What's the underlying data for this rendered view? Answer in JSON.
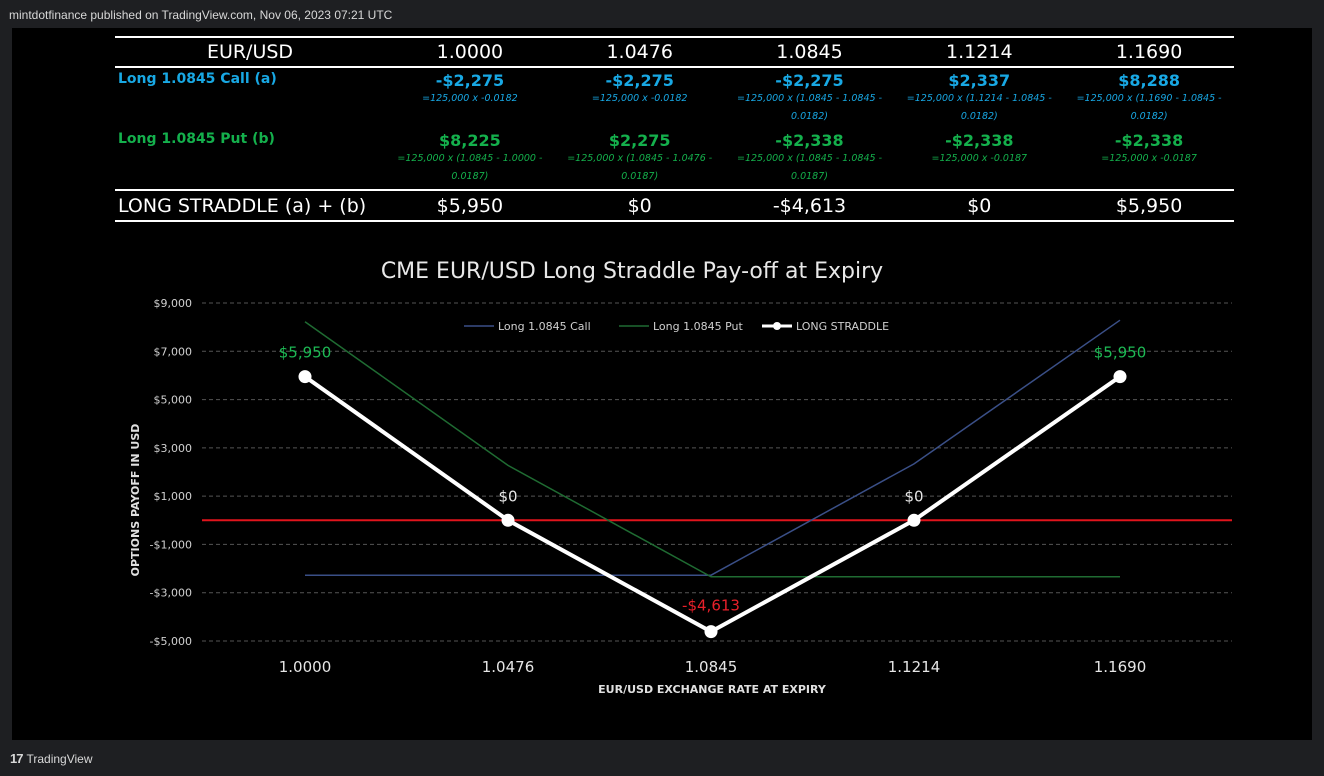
{
  "published": "mintdotfinance published on TradingView.com, Nov 06, 2023 07:21 UTC",
  "footer": {
    "brand": "TradingView",
    "logo": "tradingview-logo-icon"
  },
  "table": {
    "header": {
      "label": "EUR/USD",
      "rates": [
        "1.0000",
        "1.0476",
        "1.0845",
        "1.1214",
        "1.1690"
      ]
    },
    "rows": [
      {
        "label": "Long 1.0845 Call (a)",
        "values": [
          "-$2,275",
          "-$2,275",
          "-$2,275",
          "$2,337",
          "$8,288"
        ],
        "formulas": [
          [
            "=125,000 x -0.0182",
            ""
          ],
          [
            "=125,000 x -0.0182",
            ""
          ],
          [
            "=125,000 x (1.0845 - 1.0845 -",
            "0.0182)"
          ],
          [
            "=125,000 x (1.1214 - 1.0845 -",
            "0.0182)"
          ],
          [
            "=125,000 x (1.1690 - 1.0845 -",
            "0.0182)"
          ]
        ]
      },
      {
        "label": "Long 1.0845 Put (b)",
        "values": [
          "$8,225",
          "$2,275",
          "-$2,338",
          "-$2,338",
          "-$2,338"
        ],
        "formulas": [
          [
            "=125,000 x (1.0845 - 1.0000 -",
            "0.0187)"
          ],
          [
            "=125,000 x (1.0845 - 1.0476 -",
            "0.0187)"
          ],
          [
            "=125,000 x (1.0845 - 1.0845 -",
            "0.0187)"
          ],
          [
            "=125,000 x -0.0187",
            ""
          ],
          [
            "=125,000 x -0.0187",
            ""
          ]
        ]
      }
    ],
    "total": {
      "label": "LONG STRADDLE (a) + (b)",
      "values": [
        "$5,950",
        "$0",
        "-$4,613",
        "$0",
        "$5,950"
      ]
    }
  },
  "colors": {
    "call": "#18a8e4",
    "put": "#14b04c",
    "straddle": "#ffffff",
    "call_line": "#3a4f87",
    "put_line": "#1f6b32",
    "zero_line": "#e0141c",
    "label_positive": "#1db954",
    "label_negative": "#e8202a",
    "label_zero": "#e6e6e6"
  },
  "chart_data": {
    "type": "line",
    "title": "CME EUR/USD Long Straddle Pay-off at Expiry",
    "xlabel": "EUR/USD EXCHANGE RATE AT EXPIRY",
    "ylabel": "OPTIONS PAYOFF IN USD",
    "categories": [
      "1.0000",
      "1.0476",
      "1.0845",
      "1.1214",
      "1.1690"
    ],
    "ylim": [
      -5000,
      9000
    ],
    "yticks": [
      9000,
      7000,
      5000,
      3000,
      1000,
      -1000,
      -3000,
      -5000
    ],
    "ytick_labels": [
      "$9,000",
      "$7,000",
      "$5,000",
      "$3,000",
      "$1,000",
      "-$1,000",
      "-$3,000",
      "-$5,000"
    ],
    "grid": "horizontal-dashed",
    "legend": "top-center",
    "series": [
      {
        "name": "Long 1.0845 Call",
        "values": [
          -2275,
          -2275,
          -2275,
          2337,
          8288
        ]
      },
      {
        "name": "Long 1.0845 Put",
        "values": [
          8225,
          2275,
          -2338,
          -2338,
          -2338
        ]
      },
      {
        "name": "LONG STRADDLE",
        "values": [
          5950,
          0,
          -4613,
          0,
          5950
        ],
        "labels": [
          "$5,950",
          "$0",
          "-$4,613",
          "$0",
          "$5,950"
        ]
      }
    ]
  }
}
